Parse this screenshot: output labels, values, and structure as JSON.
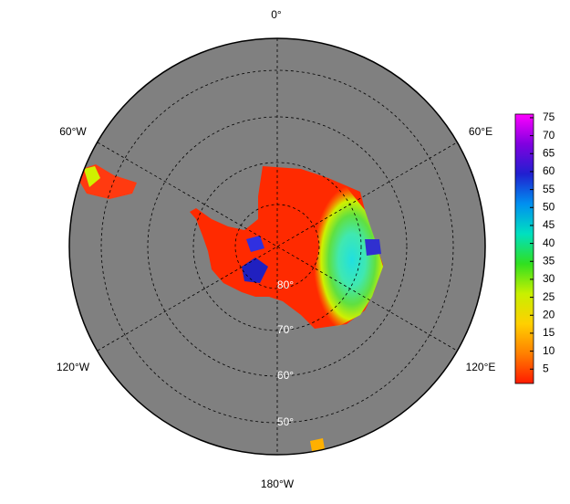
{
  "map": {
    "longitude_labels": [
      "0°",
      "60°E",
      "120°E",
      "180°W",
      "120°W",
      "60°W"
    ],
    "latitude_labels": [
      "80°",
      "70°",
      "60°",
      "50°"
    ]
  },
  "colorbar": {
    "range": [
      1,
      76
    ],
    "ticks": [
      5,
      10,
      15,
      20,
      25,
      30,
      35,
      40,
      45,
      50,
      55,
      60,
      65,
      70,
      75
    ],
    "colors": [
      "#ff1a00",
      "#ff8000",
      "#ffd000",
      "#c8f000",
      "#30e020",
      "#00e0c0",
      "#0090f0",
      "#2020d0",
      "#8000e0",
      "#ff00ff"
    ]
  }
}
